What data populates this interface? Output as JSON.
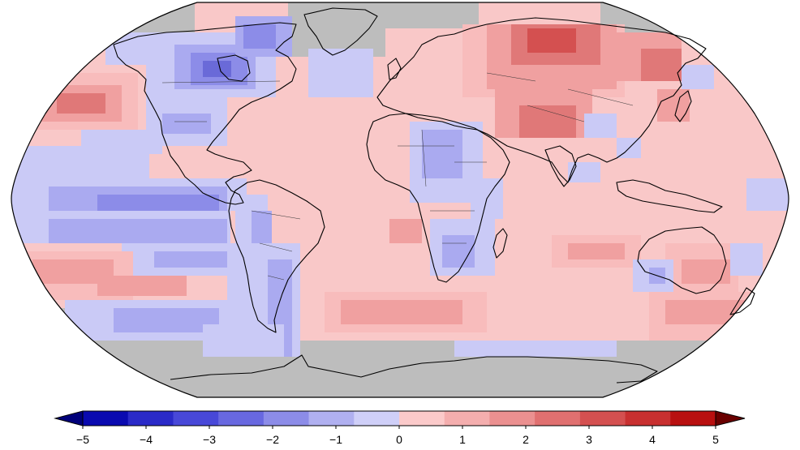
{
  "colorbar": {
    "ticks": [
      "−5",
      "−4",
      "−3",
      "−2",
      "−1",
      "0",
      "1",
      "2",
      "3",
      "4",
      "5"
    ],
    "colors": [
      "#0a0ab0",
      "#2a2ac8",
      "#4848d8",
      "#6868e0",
      "#8c8ce8",
      "#b0b0f0",
      "#cfcff8",
      "#fbcaca",
      "#f4aeae",
      "#eb9090",
      "#e07070",
      "#d45050",
      "#c83030",
      "#b81010"
    ],
    "under_color": "#00007a",
    "over_color": "#6a0000",
    "missing_color": "#bdbdbd"
  },
  "map": {
    "projection": "robinson-like",
    "ocean_fill": "#f9c8c8",
    "colors": {
      "strong_red": "#e07878",
      "red": "#f0a0a0",
      "mild_red": "#f8bcbc",
      "light_red": "#fbcdcd",
      "light_blue": "#cacaf6",
      "blue": "#aaaaf0",
      "mid_blue": "#8c8ce8",
      "deep_blue": "#6a6ad8",
      "grey": "#bdbdbd"
    }
  }
}
